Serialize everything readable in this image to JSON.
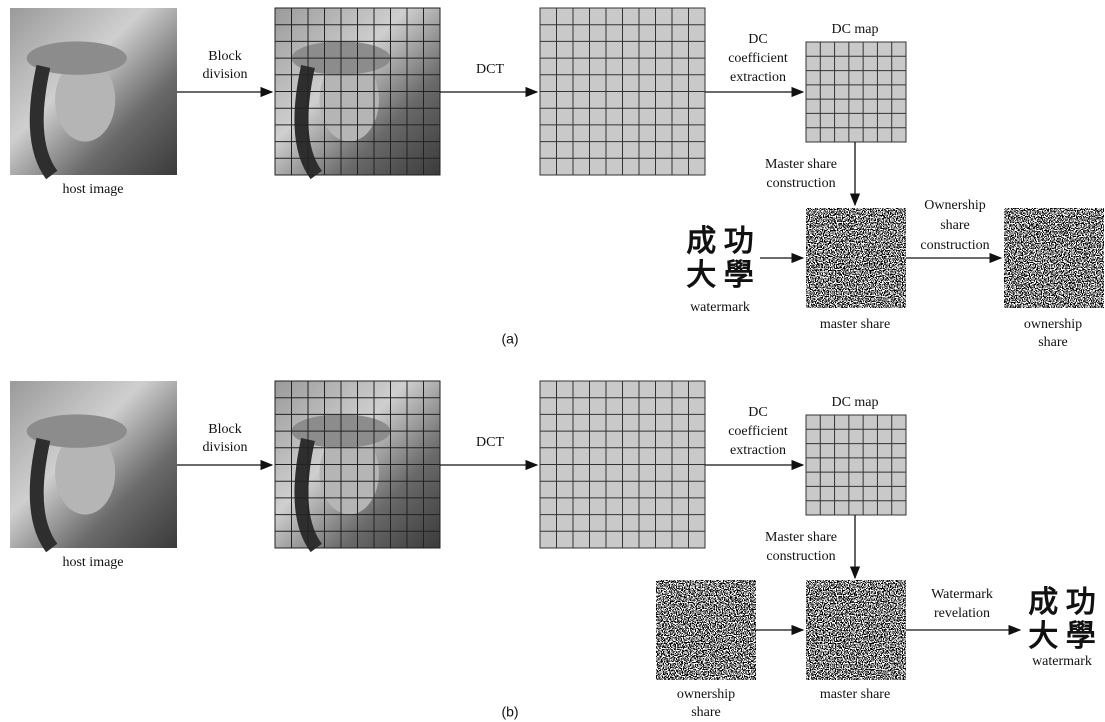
{
  "panel_a": {
    "host_image_label": "host image",
    "block_division": [
      "Block",
      "division"
    ],
    "dct": "DCT",
    "dc_extraction": [
      "DC",
      "coefficient",
      "extraction"
    ],
    "dc_map": "DC map",
    "master_construction": [
      "Master share",
      "construction"
    ],
    "watermark_chars": [
      "成 功",
      "大 學"
    ],
    "watermark_label": "watermark",
    "master_share_label": "master share",
    "ownership_construction": [
      "Ownership",
      "share",
      "construction"
    ],
    "ownership_share_label": [
      "ownership",
      "share"
    ],
    "caption": "(a)"
  },
  "panel_b": {
    "host_image_label": "host image",
    "block_division": [
      "Block",
      "division"
    ],
    "dct": "DCT",
    "dc_extraction": [
      "DC",
      "coefficient",
      "extraction"
    ],
    "dc_map": "DC map",
    "master_construction": [
      "Master share",
      "construction"
    ],
    "ownership_share_label": [
      "ownership",
      "share"
    ],
    "master_share_label": "master share",
    "watermark_revelation": [
      "Watermark",
      "revelation"
    ],
    "watermark_chars": [
      "成 功",
      "大 學"
    ],
    "watermark_label": "watermark",
    "caption": "(b)"
  }
}
